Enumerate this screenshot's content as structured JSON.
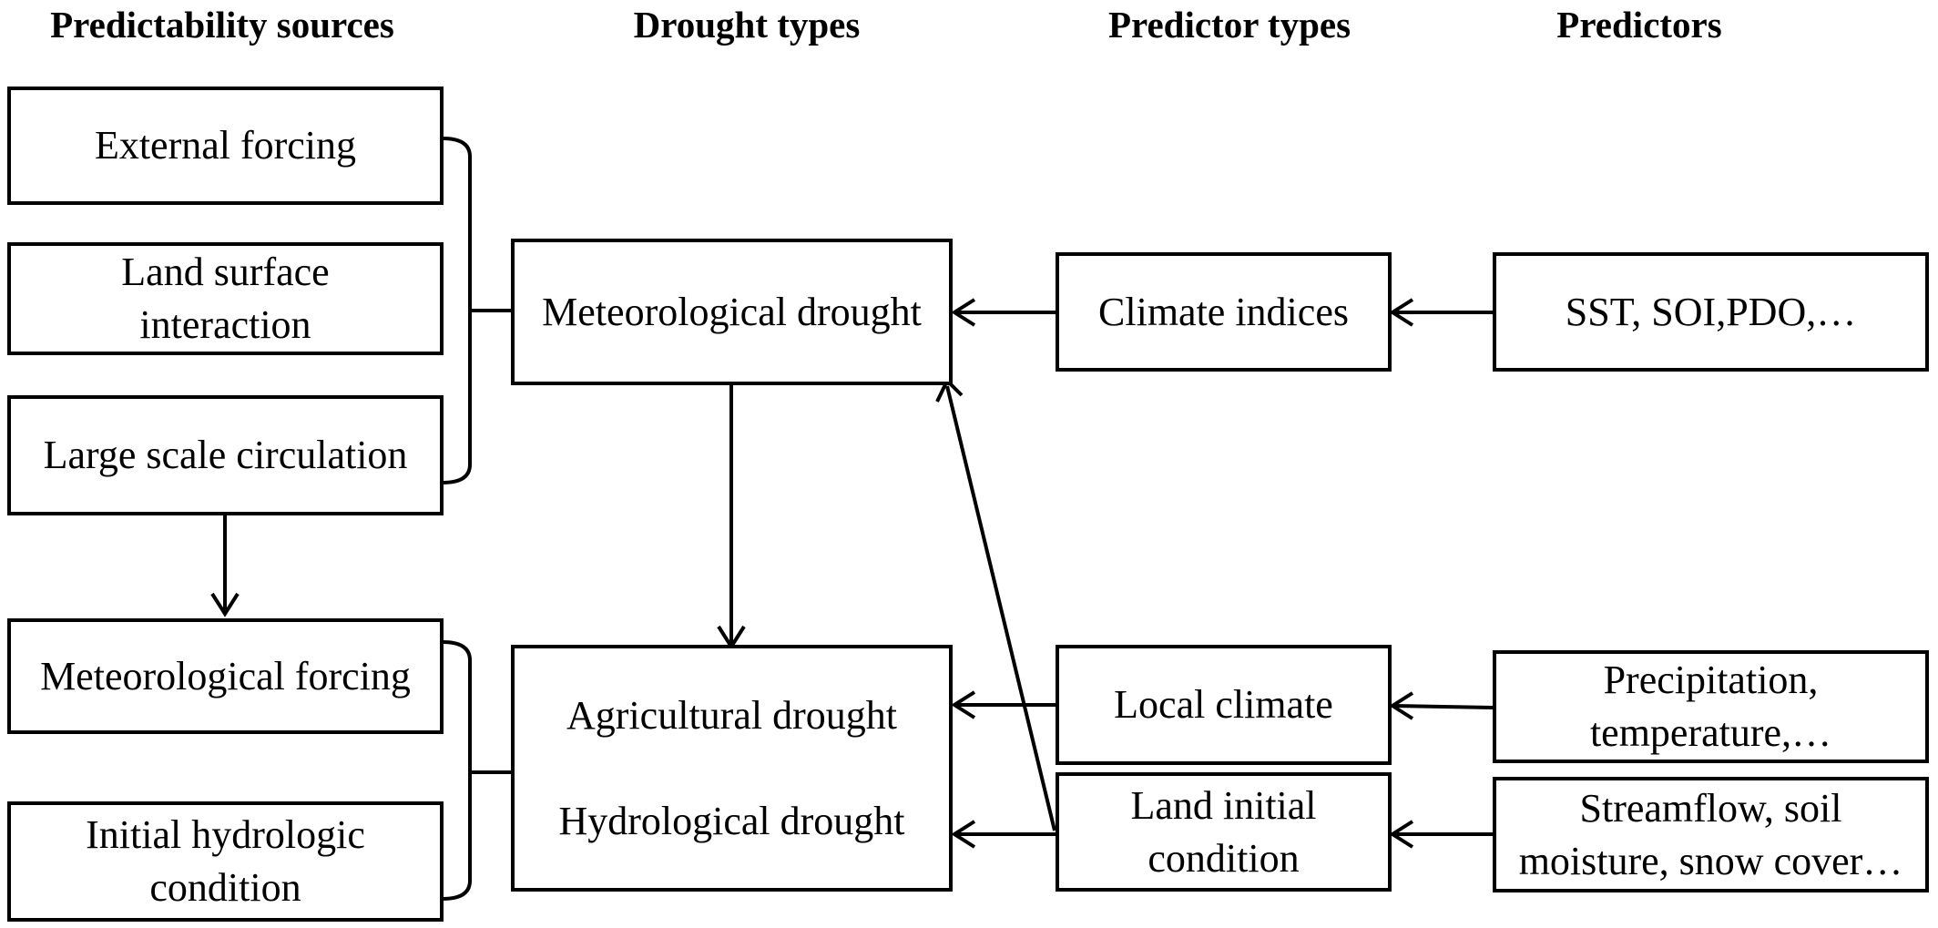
{
  "headers": {
    "predictability_sources": "Predictability sources",
    "drought_types": "Drought types",
    "predictor_types": "Predictor types",
    "predictors": "Predictors"
  },
  "sources": {
    "external_forcing": "External forcing",
    "land_surface_interaction": [
      "Land surface",
      "interaction"
    ],
    "large_scale_circulation": "Large scale circulation",
    "meteorological_forcing": "Meteorological forcing",
    "initial_hydrologic_condition": [
      "Initial hydrologic",
      "condition"
    ]
  },
  "drought_types": {
    "meteorological": "Meteorological drought",
    "agricultural": "Agricultural drought",
    "hydrological": "Hydrological drought"
  },
  "predictor_types": {
    "climate_indices": "Climate indices",
    "local_climate": "Local climate",
    "land_initial_condition": [
      "Land initial",
      "condition"
    ]
  },
  "predictors": {
    "climate_indices": "SST, SOI,PDO,…",
    "local_climate": [
      "Precipitation,",
      "temperature,…"
    ],
    "land_initial_condition": [
      "Streamflow, soil",
      "moisture, snow cover…"
    ]
  }
}
